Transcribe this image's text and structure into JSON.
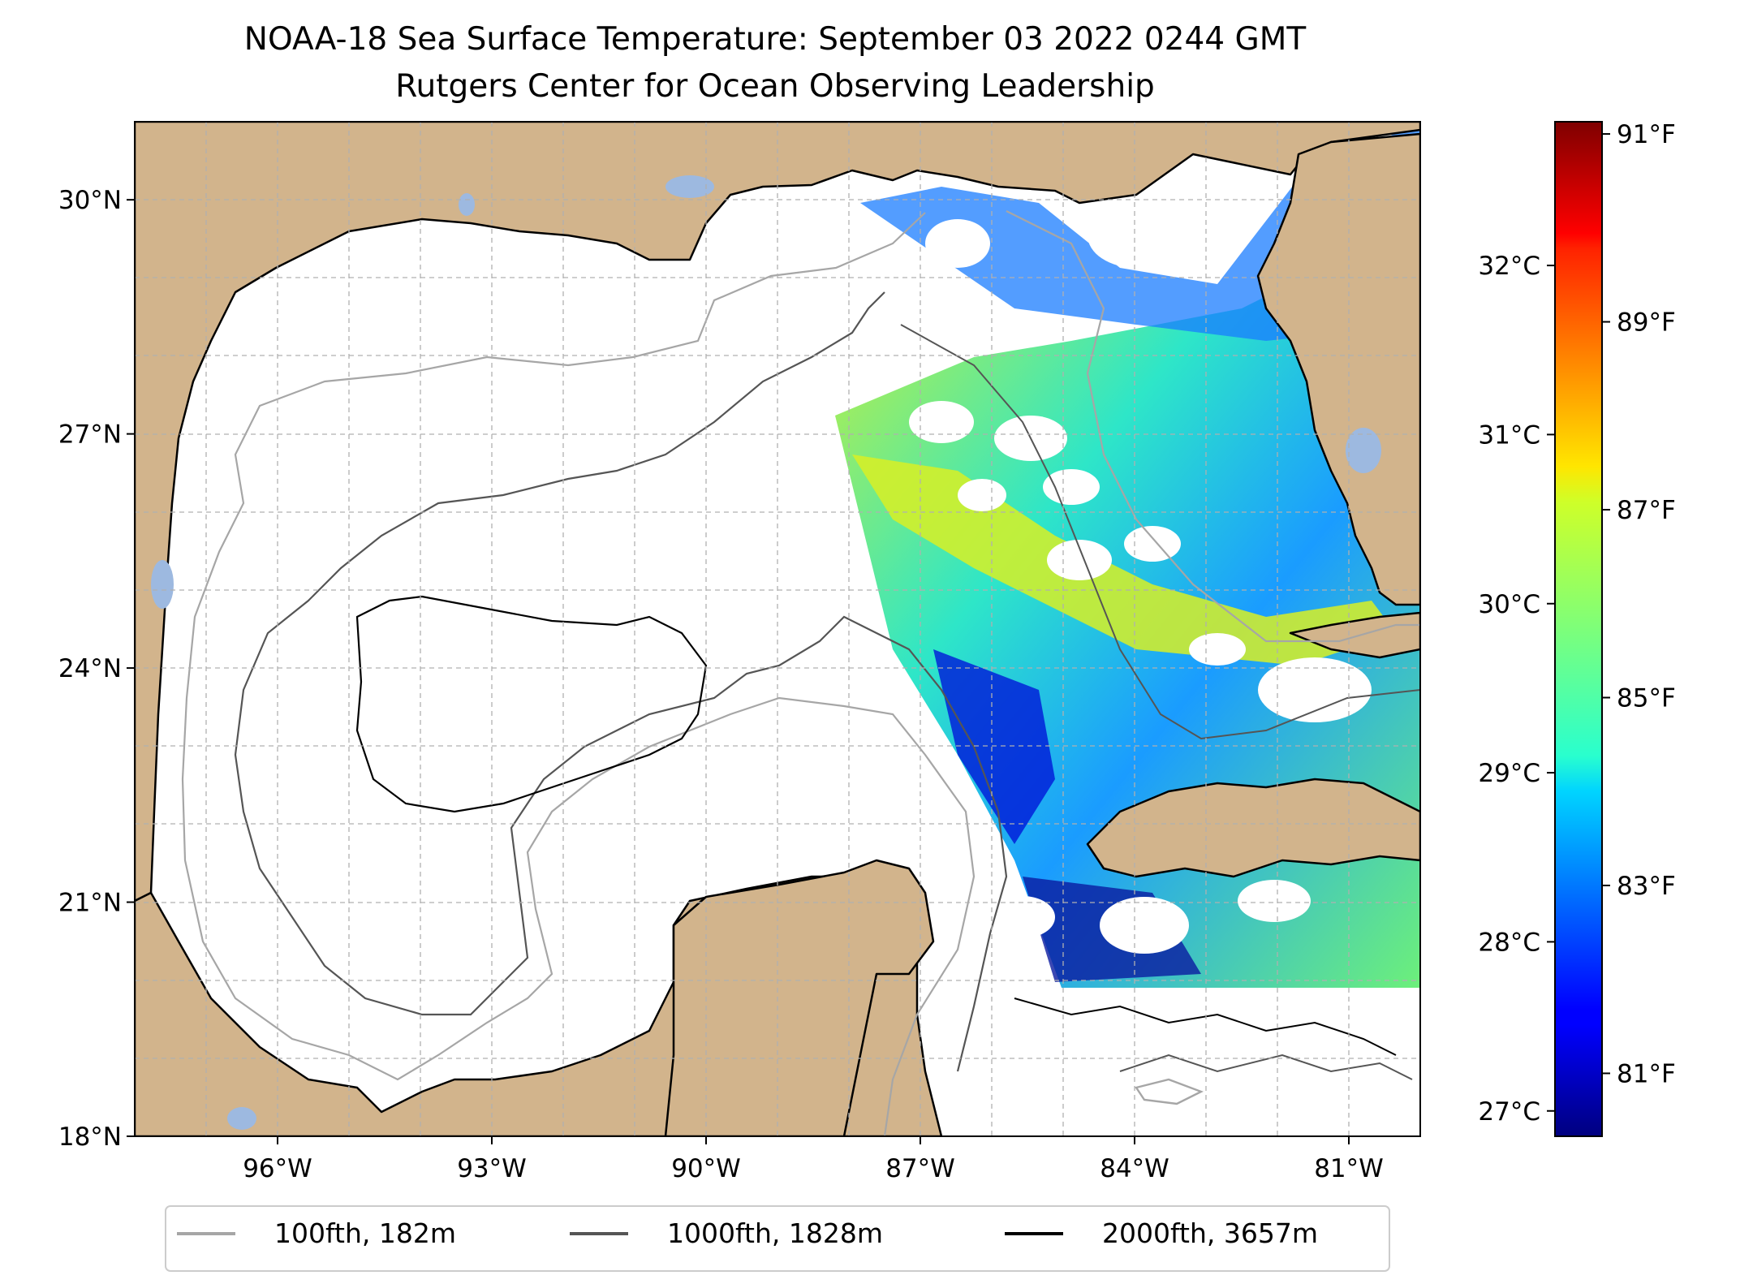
{
  "title": {
    "line1": "NOAA-18 Sea Surface Temperature: September 03 2022 0244 GMT",
    "line2": "Rutgers Center for Ocean Observing Leadership"
  },
  "map": {
    "lon_range": [
      -98.0,
      -80.0
    ],
    "lat_range": [
      18.0,
      31.0
    ],
    "lon_ticks": [
      "96°W",
      "93°W",
      "90°W",
      "87°W",
      "84°W",
      "81°W"
    ],
    "lon_tick_values": [
      -96,
      -93,
      -90,
      -87,
      -84,
      -81
    ],
    "lat_ticks": [
      "18°N",
      "21°N",
      "24°N",
      "27°N",
      "30°N"
    ],
    "lat_tick_values": [
      18,
      21,
      24,
      27,
      30
    ],
    "gridlines": true,
    "colors": {
      "land": "#d2b48c",
      "lakes": "#9db9e0",
      "ocean": "#ffffff",
      "grid": "#b0b0b0"
    }
  },
  "colorbar": {
    "colormap": "jet",
    "celsius_ticks": [
      "27°C",
      "28°C",
      "29°C",
      "30°C",
      "31°C",
      "32°C"
    ],
    "celsius_values": [
      27,
      28,
      29,
      30,
      31,
      32
    ],
    "fahrenheit_ticks": [
      "81°F",
      "83°F",
      "85°F",
      "87°F",
      "89°F",
      "91°F"
    ],
    "fahrenheit_values": [
      81,
      83,
      85,
      87,
      89,
      91
    ],
    "range_c": [
      26.85,
      32.85
    ]
  },
  "legend": {
    "placement": "bottom-center",
    "items": [
      {
        "label": "100fth, 182m",
        "color": "#a6a6a6"
      },
      {
        "label": "1000fth, 1828m",
        "color": "#555555"
      },
      {
        "label": "2000fth, 3657m",
        "color": "#000000"
      }
    ]
  }
}
